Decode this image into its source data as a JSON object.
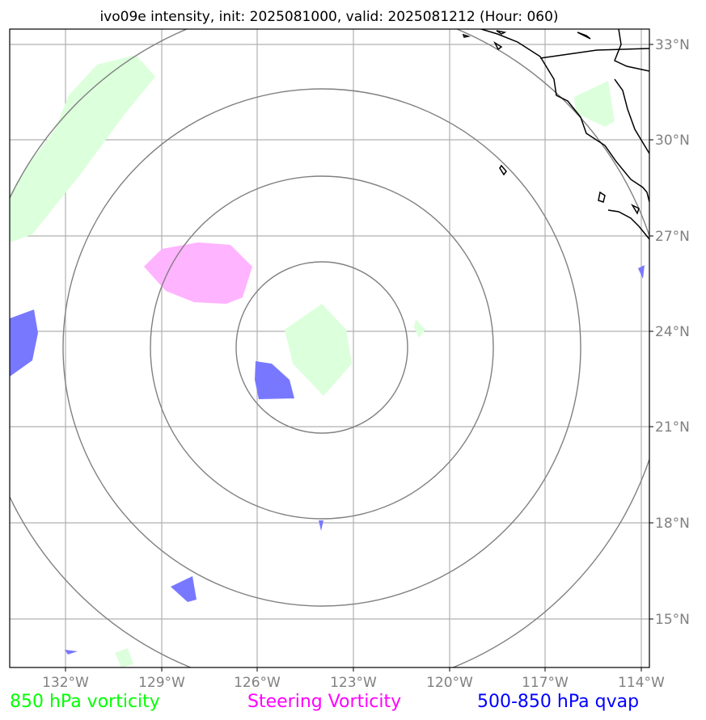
{
  "title": "ivo09e intensity, init: 2025081000, valid: 2025081212 (Hour: 060)",
  "lat_labels": [
    "33°N",
    "30°N",
    "27°N",
    "24°N",
    "21°N",
    "18°N",
    "15°N"
  ],
  "lon_labels": [
    "132°W",
    "129°W",
    "126°W",
    "123°W",
    "120°W",
    "117°W",
    "114°W"
  ],
  "legend": [
    {
      "label": "850 hPa vorticity",
      "color": "#00ff00"
    },
    {
      "label": "Steering Vorticity",
      "color": "#ff00ff"
    },
    {
      "label": "500-850 hPa qvap",
      "color": "#0000ff"
    }
  ],
  "colors": {
    "vorticity_fill": "#dcffdc",
    "steering_fill": "#ffb4ff",
    "qvap_fill": "#7878ff",
    "grid": "#b0b0b0",
    "rings": "#808080",
    "coast": "#000000"
  }
}
